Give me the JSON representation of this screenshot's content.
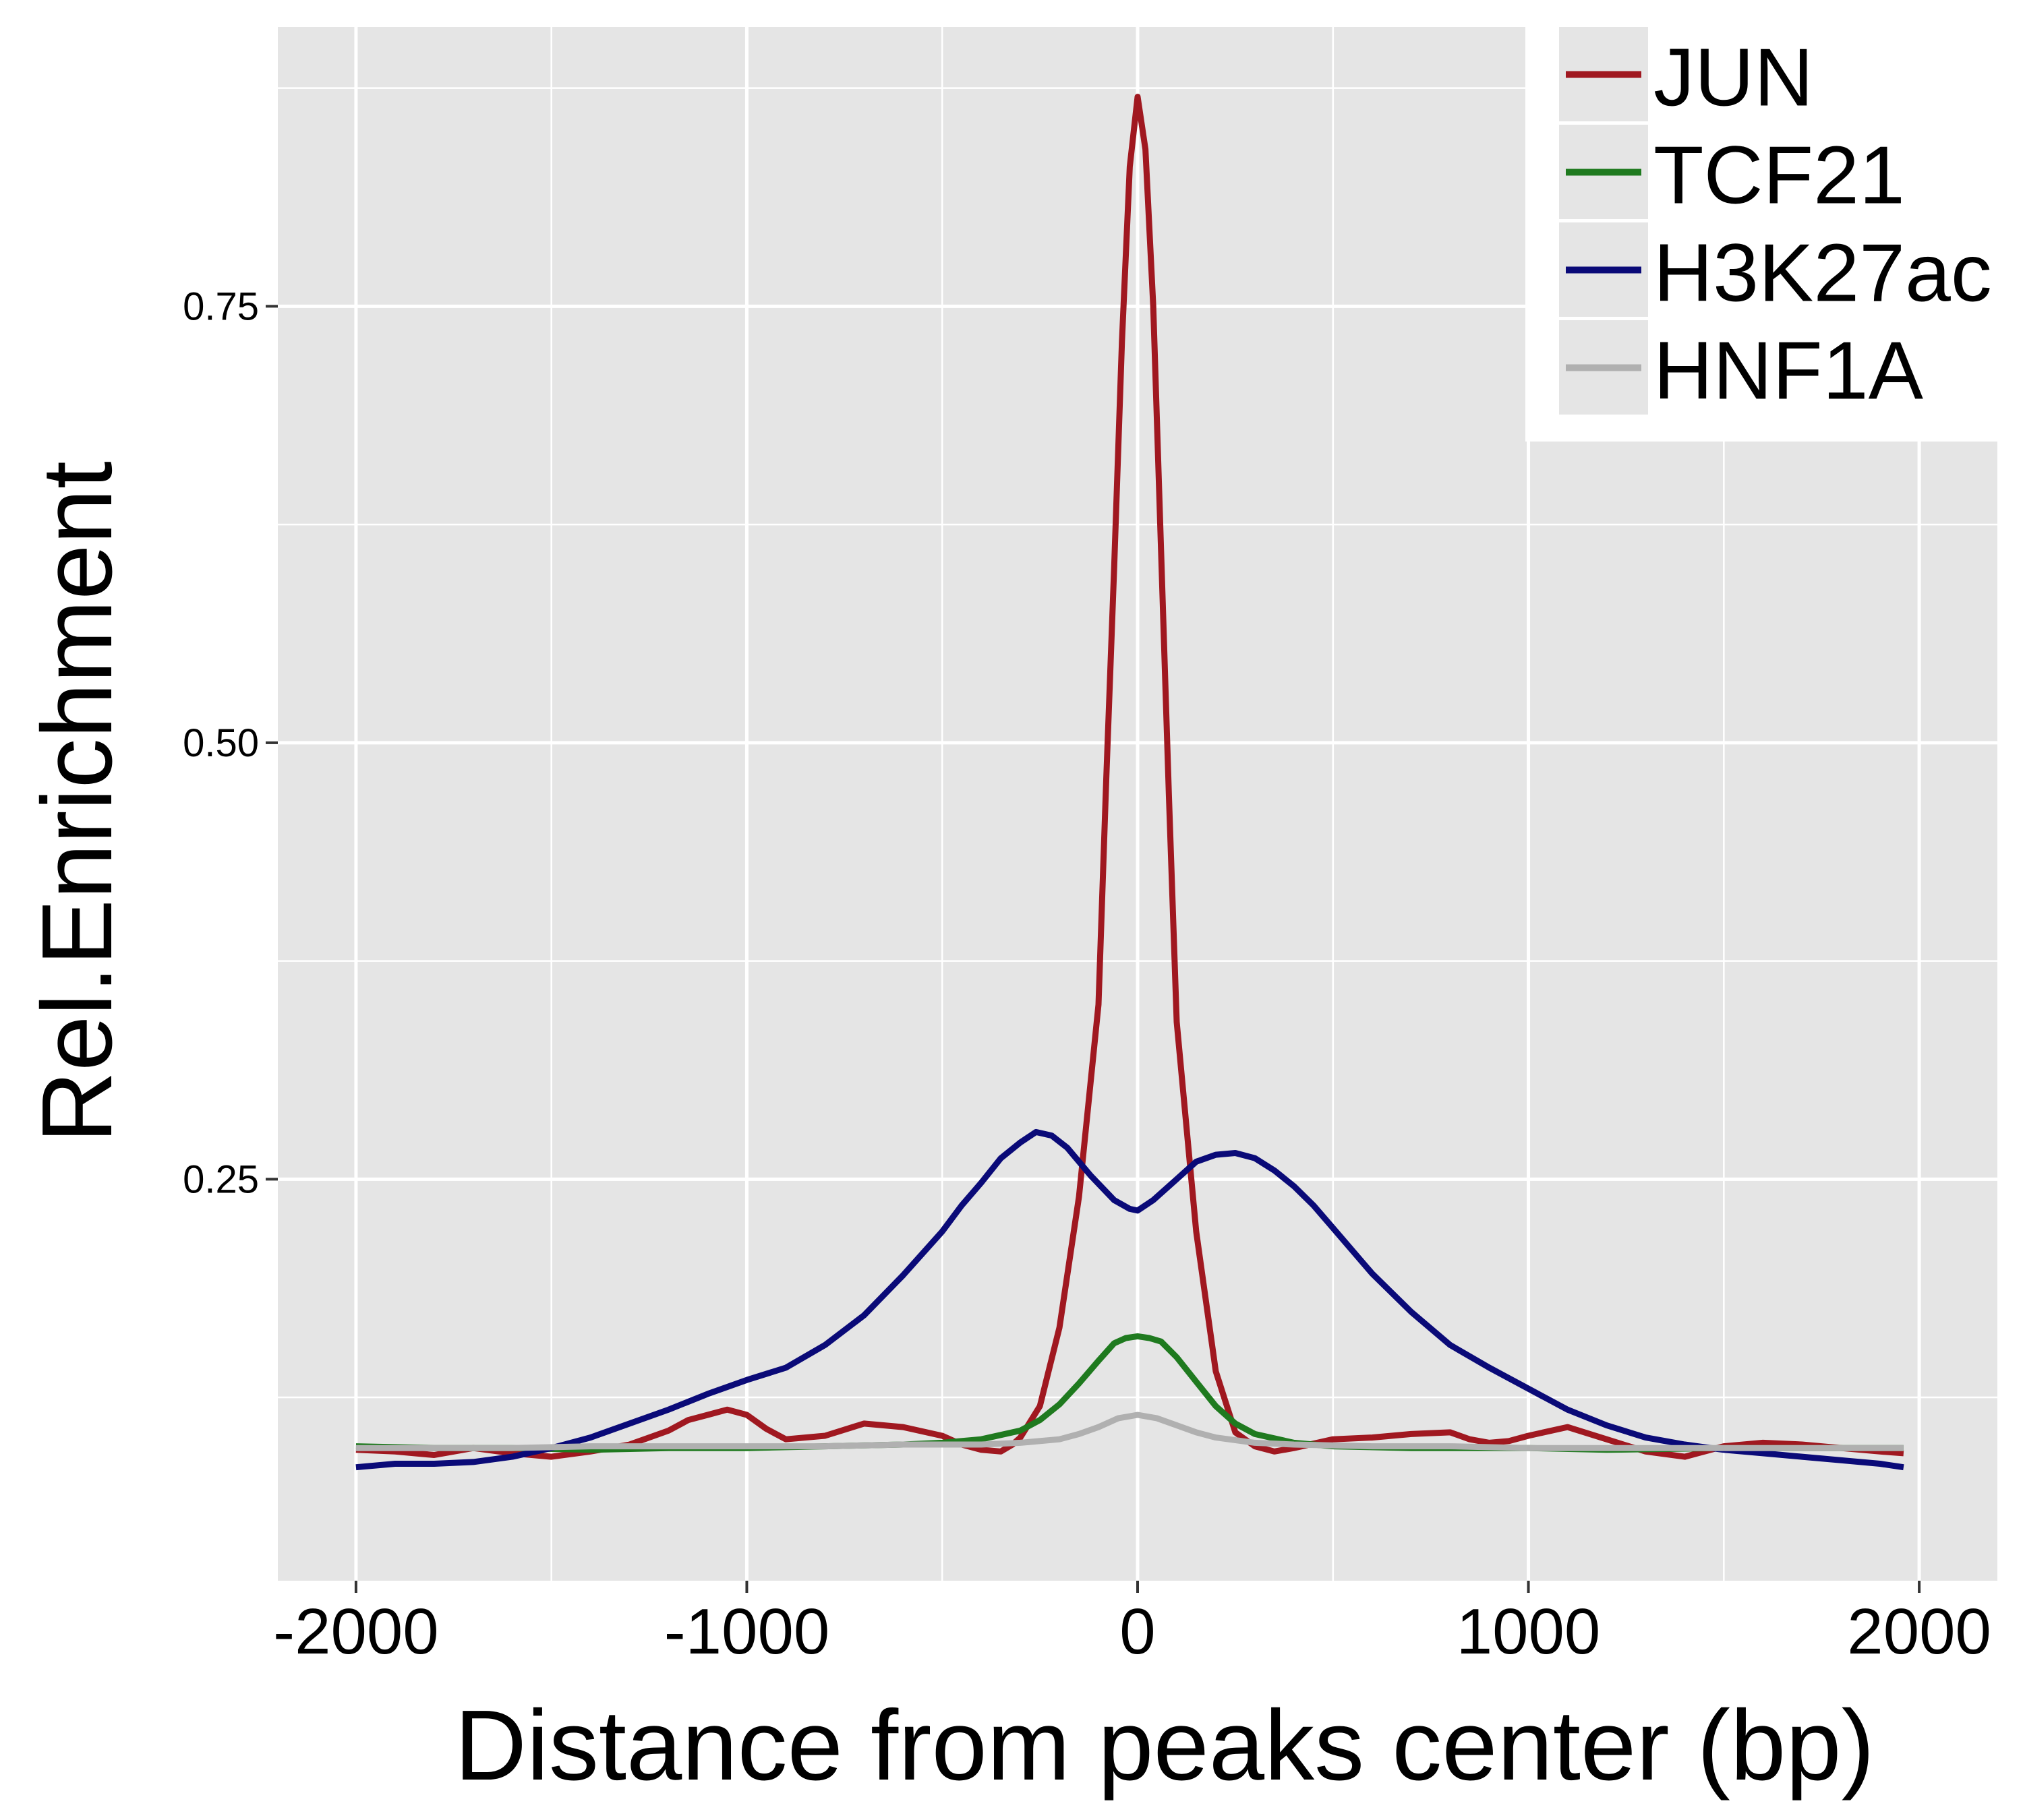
{
  "chart_data": {
    "type": "line",
    "title": "",
    "xlabel": "Distance from peaks center (bp)",
    "ylabel": "Rel.Enrichment",
    "xlim": [
      -2200,
      2200
    ],
    "ylim": [
      0.02,
      0.91
    ],
    "x_ticks": [
      -2000,
      -1000,
      0,
      1000,
      2000
    ],
    "x_tick_labels": [
      "-2000",
      "-1000",
      "0",
      "1000",
      "2000"
    ],
    "y_ticks": [
      0.25,
      0.5,
      0.75
    ],
    "y_tick_labels": [
      "0.25",
      "0.50",
      "0.75"
    ],
    "grid": true,
    "panel_background": "#e5e5e5",
    "legend_position": "top-right",
    "series": [
      {
        "name": "JUN",
        "color": "#a01820",
        "points": [
          [
            -2000,
            0.095
          ],
          [
            -1900,
            0.094
          ],
          [
            -1800,
            0.092
          ],
          [
            -1700,
            0.096
          ],
          [
            -1600,
            0.093
          ],
          [
            -1500,
            0.091
          ],
          [
            -1400,
            0.094
          ],
          [
            -1300,
            0.098
          ],
          [
            -1200,
            0.106
          ],
          [
            -1150,
            0.112
          ],
          [
            -1100,
            0.115
          ],
          [
            -1050,
            0.118
          ],
          [
            -1000,
            0.115
          ],
          [
            -950,
            0.107
          ],
          [
            -900,
            0.101
          ],
          [
            -800,
            0.103
          ],
          [
            -700,
            0.11
          ],
          [
            -600,
            0.108
          ],
          [
            -500,
            0.103
          ],
          [
            -450,
            0.098
          ],
          [
            -400,
            0.095
          ],
          [
            -350,
            0.094
          ],
          [
            -320,
            0.098
          ],
          [
            -300,
            0.102
          ],
          [
            -250,
            0.12
          ],
          [
            -200,
            0.165
          ],
          [
            -150,
            0.24
          ],
          [
            -100,
            0.35
          ],
          [
            -80,
            0.48
          ],
          [
            -60,
            0.6
          ],
          [
            -40,
            0.73
          ],
          [
            -20,
            0.83
          ],
          [
            0,
            0.87
          ],
          [
            20,
            0.84
          ],
          [
            40,
            0.75
          ],
          [
            60,
            0.61
          ],
          [
            80,
            0.47
          ],
          [
            100,
            0.34
          ],
          [
            150,
            0.22
          ],
          [
            200,
            0.14
          ],
          [
            250,
            0.105
          ],
          [
            300,
            0.097
          ],
          [
            350,
            0.094
          ],
          [
            400,
            0.096
          ],
          [
            500,
            0.101
          ],
          [
            600,
            0.102
          ],
          [
            700,
            0.104
          ],
          [
            800,
            0.105
          ],
          [
            850,
            0.101
          ],
          [
            900,
            0.099
          ],
          [
            950,
            0.1
          ],
          [
            1000,
            0.103
          ],
          [
            1100,
            0.108
          ],
          [
            1200,
            0.101
          ],
          [
            1300,
            0.094
          ],
          [
            1400,
            0.091
          ],
          [
            1500,
            0.097
          ],
          [
            1600,
            0.099
          ],
          [
            1700,
            0.098
          ],
          [
            1800,
            0.096
          ],
          [
            1900,
            0.094
          ],
          [
            1960,
            0.093
          ]
        ]
      },
      {
        "name": "TCF21",
        "color": "#1f7a1f",
        "points": [
          [
            -2000,
            0.097
          ],
          [
            -1800,
            0.096
          ],
          [
            -1600,
            0.096
          ],
          [
            -1400,
            0.095
          ],
          [
            -1200,
            0.096
          ],
          [
            -1000,
            0.096
          ],
          [
            -800,
            0.097
          ],
          [
            -600,
            0.098
          ],
          [
            -500,
            0.099
          ],
          [
            -400,
            0.101
          ],
          [
            -300,
            0.106
          ],
          [
            -250,
            0.112
          ],
          [
            -200,
            0.121
          ],
          [
            -150,
            0.133
          ],
          [
            -100,
            0.146
          ],
          [
            -60,
            0.156
          ],
          [
            -30,
            0.159
          ],
          [
            0,
            0.16
          ],
          [
            30,
            0.159
          ],
          [
            60,
            0.157
          ],
          [
            100,
            0.148
          ],
          [
            150,
            0.134
          ],
          [
            200,
            0.12
          ],
          [
            250,
            0.11
          ],
          [
            300,
            0.104
          ],
          [
            400,
            0.099
          ],
          [
            500,
            0.097
          ],
          [
            700,
            0.096
          ],
          [
            1000,
            0.096
          ],
          [
            1200,
            0.095
          ],
          [
            1500,
            0.096
          ],
          [
            1700,
            0.096
          ],
          [
            1960,
            0.096
          ]
        ]
      },
      {
        "name": "H3K27ac",
        "color": "#0a0a78",
        "points": [
          [
            -2000,
            0.085
          ],
          [
            -1900,
            0.087
          ],
          [
            -1800,
            0.087
          ],
          [
            -1700,
            0.088
          ],
          [
            -1600,
            0.091
          ],
          [
            -1500,
            0.096
          ],
          [
            -1400,
            0.102
          ],
          [
            -1300,
            0.11
          ],
          [
            -1200,
            0.118
          ],
          [
            -1100,
            0.127
          ],
          [
            -1000,
            0.135
          ],
          [
            -900,
            0.142
          ],
          [
            -800,
            0.155
          ],
          [
            -700,
            0.172
          ],
          [
            -600,
            0.195
          ],
          [
            -500,
            0.22
          ],
          [
            -450,
            0.235
          ],
          [
            -400,
            0.248
          ],
          [
            -350,
            0.262
          ],
          [
            -300,
            0.271
          ],
          [
            -260,
            0.277
          ],
          [
            -220,
            0.275
          ],
          [
            -180,
            0.268
          ],
          [
            -120,
            0.252
          ],
          [
            -60,
            0.238
          ],
          [
            -20,
            0.233
          ],
          [
            0,
            0.232
          ],
          [
            40,
            0.238
          ],
          [
            100,
            0.25
          ],
          [
            150,
            0.26
          ],
          [
            200,
            0.264
          ],
          [
            250,
            0.265
          ],
          [
            300,
            0.262
          ],
          [
            350,
            0.255
          ],
          [
            400,
            0.246
          ],
          [
            450,
            0.235
          ],
          [
            500,
            0.222
          ],
          [
            600,
            0.196
          ],
          [
            700,
            0.174
          ],
          [
            800,
            0.155
          ],
          [
            900,
            0.142
          ],
          [
            1000,
            0.13
          ],
          [
            1100,
            0.118
          ],
          [
            1200,
            0.109
          ],
          [
            1300,
            0.102
          ],
          [
            1400,
            0.098
          ],
          [
            1500,
            0.095
          ],
          [
            1600,
            0.093
          ],
          [
            1700,
            0.091
          ],
          [
            1800,
            0.089
          ],
          [
            1900,
            0.087
          ],
          [
            1960,
            0.085
          ]
        ]
      },
      {
        "name": "HNF1A",
        "color": "#b0b0b0",
        "points": [
          [
            -2000,
            0.096
          ],
          [
            -1800,
            0.096
          ],
          [
            -1600,
            0.096
          ],
          [
            -1400,
            0.097
          ],
          [
            -1200,
            0.097
          ],
          [
            -1000,
            0.097
          ],
          [
            -800,
            0.097
          ],
          [
            -600,
            0.098
          ],
          [
            -400,
            0.098
          ],
          [
            -300,
            0.099
          ],
          [
            -200,
            0.101
          ],
          [
            -150,
            0.104
          ],
          [
            -100,
            0.108
          ],
          [
            -50,
            0.113
          ],
          [
            0,
            0.115
          ],
          [
            50,
            0.113
          ],
          [
            100,
            0.109
          ],
          [
            150,
            0.105
          ],
          [
            200,
            0.102
          ],
          [
            300,
            0.099
          ],
          [
            400,
            0.098
          ],
          [
            600,
            0.097
          ],
          [
            800,
            0.097
          ],
          [
            1000,
            0.096
          ],
          [
            1200,
            0.096
          ],
          [
            1500,
            0.096
          ],
          [
            1800,
            0.096
          ],
          [
            1960,
            0.096
          ]
        ]
      }
    ]
  }
}
